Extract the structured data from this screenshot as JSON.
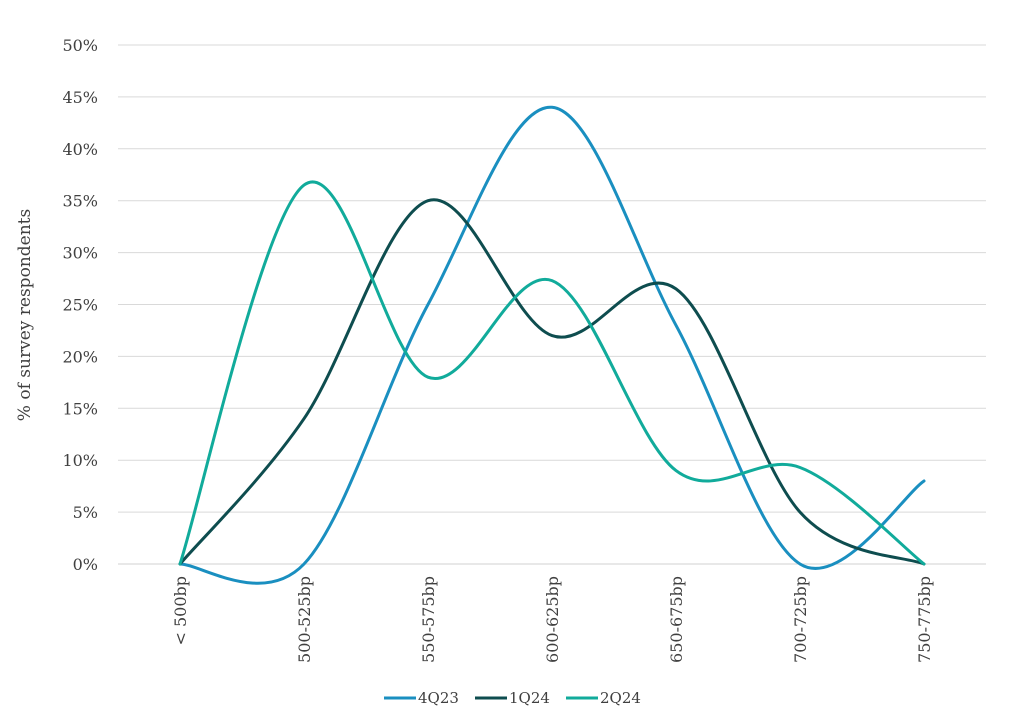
{
  "chart_data": {
    "type": "line",
    "title": "",
    "xlabel": "",
    "ylabel": "% of survey respondents",
    "categories": [
      "< 500bp",
      "500-525bp",
      "550-575bp",
      "600-625bp",
      "650-675bp",
      "700-725bp",
      "750-775bp"
    ],
    "ylim": [
      0,
      50
    ],
    "yticks": [
      0,
      5,
      10,
      15,
      20,
      25,
      30,
      35,
      40,
      45,
      50
    ],
    "ytick_labels": [
      "0%",
      "5%",
      "10%",
      "15%",
      "20%",
      "25%",
      "30%",
      "35%",
      "40%",
      "45%",
      "50%"
    ],
    "grid": true,
    "smooth": true,
    "legend_position": "bottom",
    "series": [
      {
        "name": "4Q23",
        "color": "#1a8fc0",
        "values": [
          0,
          0,
          25,
          44,
          23,
          0,
          8
        ]
      },
      {
        "name": "1Q24",
        "color": "#0e4d4f",
        "values": [
          0,
          14,
          35,
          22,
          26.5,
          5,
          0
        ]
      },
      {
        "name": "2Q24",
        "color": "#11ab9b",
        "values": [
          0,
          36.5,
          18,
          27.3,
          9,
          9.3,
          0
        ]
      }
    ]
  }
}
